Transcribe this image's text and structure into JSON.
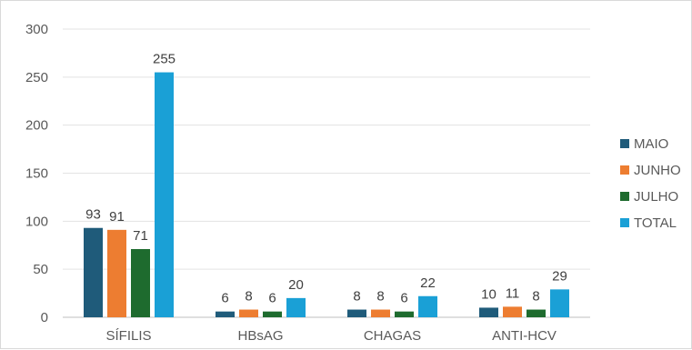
{
  "chart_data": {
    "type": "bar",
    "categories": [
      "SÍFILIS",
      "HBsAG",
      "CHAGAS",
      "ANTI-HCV"
    ],
    "series": [
      {
        "name": "MAIO",
        "values": [
          93,
          6,
          8,
          10
        ],
        "color": "#1f5b7a"
      },
      {
        "name": "JUNHO",
        "values": [
          91,
          8,
          8,
          11
        ],
        "color": "#ed7d31"
      },
      {
        "name": "JULHO",
        "values": [
          71,
          6,
          6,
          8
        ],
        "color": "#1e6b2e"
      },
      {
        "name": "TOTAL",
        "values": [
          255,
          20,
          22,
          29
        ],
        "color": "#1aa0d6"
      }
    ],
    "ylim": [
      0,
      300
    ],
    "yticks": [
      0,
      50,
      100,
      150,
      200,
      250,
      300
    ],
    "grid": true,
    "legend_position": "right",
    "data_labels": true
  }
}
